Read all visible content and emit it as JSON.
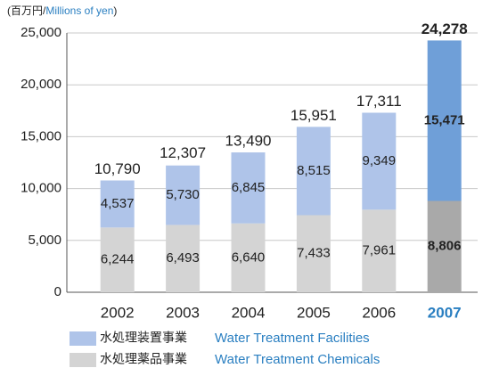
{
  "chart_data": {
    "type": "stacked_bar",
    "y_label_parts": [
      "(百万円/",
      "Millions of yen",
      ")"
    ],
    "y_label_colors": [
      "#222222",
      "#2a7fc1",
      "#222222"
    ],
    "categories": [
      "2002",
      "2003",
      "2004",
      "2005",
      "2006",
      "2007"
    ],
    "highlight_category": "2007",
    "highlight_color": "#2a7fc1",
    "series": [
      {
        "name": "水処理薬品事業",
        "name_en": "Water Treatment Chemicals",
        "color": "#d4d4d4",
        "colors": [
          "#d4d4d4",
          "#d4d4d4",
          "#d4d4d4",
          "#d4d4d4",
          "#d4d4d4",
          "#a9a9a9"
        ],
        "values": [
          6244,
          6493,
          6640,
          7433,
          7961,
          8806
        ],
        "value_labels": [
          "6,244",
          "6,493",
          "6,640",
          "7,433",
          "7,961",
          "8,806"
        ]
      },
      {
        "name": "水処理装置事業",
        "name_en": "Water Treatment Facilities",
        "color": "#afc4e9",
        "colors": [
          "#afc4e9",
          "#afc4e9",
          "#afc4e9",
          "#afc4e9",
          "#afc4e9",
          "#6f9fd8"
        ],
        "values": [
          4537,
          5730,
          6845,
          8515,
          9349,
          15471
        ],
        "value_labels": [
          "4,537",
          "5,730",
          "6,845",
          "8,515",
          "9,349",
          "15,471"
        ]
      }
    ],
    "totals": {
      "values": [
        10790,
        12307,
        13490,
        15951,
        17311,
        24278
      ],
      "value_labels": [
        "10,790",
        "12,307",
        "13,490",
        "15,951",
        "17,311",
        "24,278"
      ]
    },
    "ylim": [
      0,
      25000
    ],
    "yticks": [
      0,
      {
        "value": 5000,
        "label": "5,000"
      },
      {
        "value": 10000,
        "label": "10,000"
      },
      {
        "value": 15000,
        "label": "15,000"
      },
      {
        "value": 20000,
        "label": "20,000"
      },
      {
        "value": 25000,
        "label": "25,000"
      }
    ],
    "grid": true,
    "legend_text_color": "#2a7fc1"
  }
}
